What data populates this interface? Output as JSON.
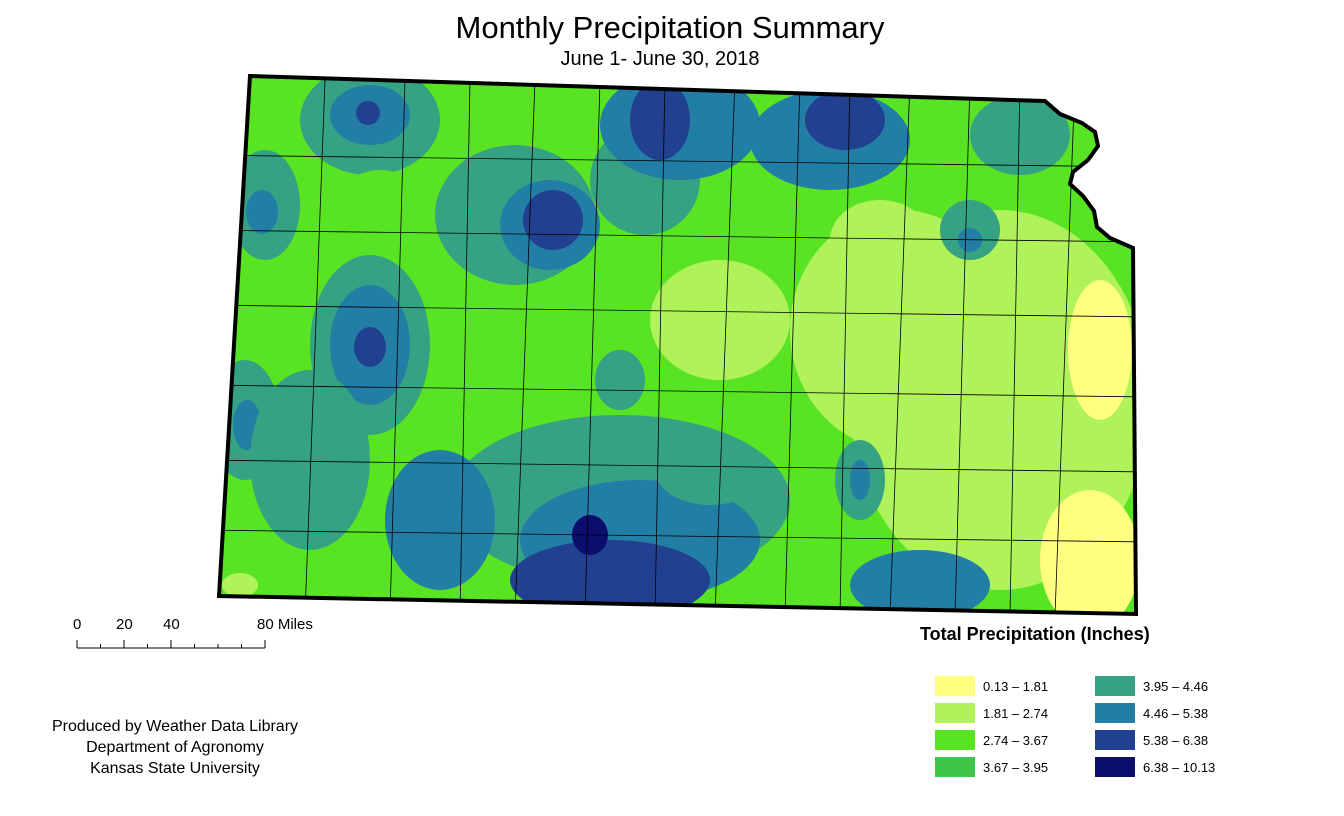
{
  "title": "Monthly Precipitation Summary",
  "subtitle": "June 1- June 30, 2018",
  "scale_bar": {
    "labels": [
      "0",
      "20",
      "40",
      "80 Miles"
    ]
  },
  "credits": [
    "Produced by Weather Data Library",
    "Department of Agronomy",
    "Kansas State University"
  ],
  "legend": {
    "title": "Total Precipitation (Inches)",
    "classes": [
      {
        "label": "0.13 – 1.81",
        "color": "#ffff80"
      },
      {
        "label": "1.81 – 2.74",
        "color": "#b0f25a"
      },
      {
        "label": "2.74 – 3.67",
        "color": "#58e423"
      },
      {
        "label": "3.67 – 3.95",
        "color": "#3ec64b"
      },
      {
        "label": "3.95 – 4.46",
        "color": "#34a283"
      },
      {
        "label": "4.46 – 5.38",
        "color": "#237ea6"
      },
      {
        "label": "5.38 – 6.38",
        "color": "#21408f"
      },
      {
        "label": "6.38 – 10.13",
        "color": "#0c0e6e"
      }
    ]
  },
  "map": {
    "region": "Kansas",
    "background_color": "#58e423"
  }
}
